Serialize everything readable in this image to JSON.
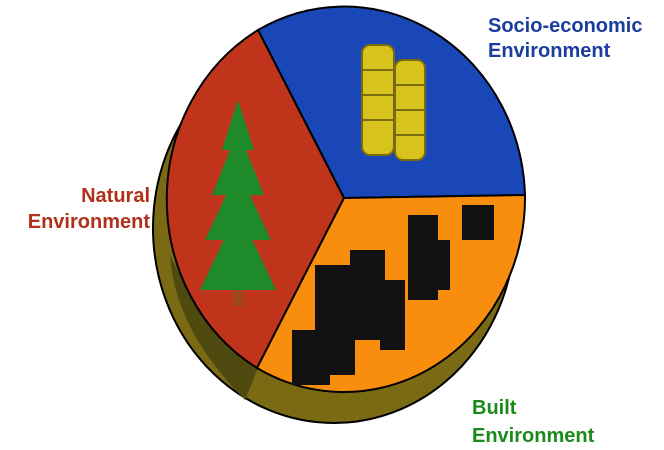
{
  "segments": [
    {
      "lines": [
        "Socio-economic",
        "Environment"
      ]
    },
    {
      "lines": [
        "Natural",
        "Environment"
      ]
    },
    {
      "lines": [
        "Built",
        "Environment"
      ]
    }
  ]
}
